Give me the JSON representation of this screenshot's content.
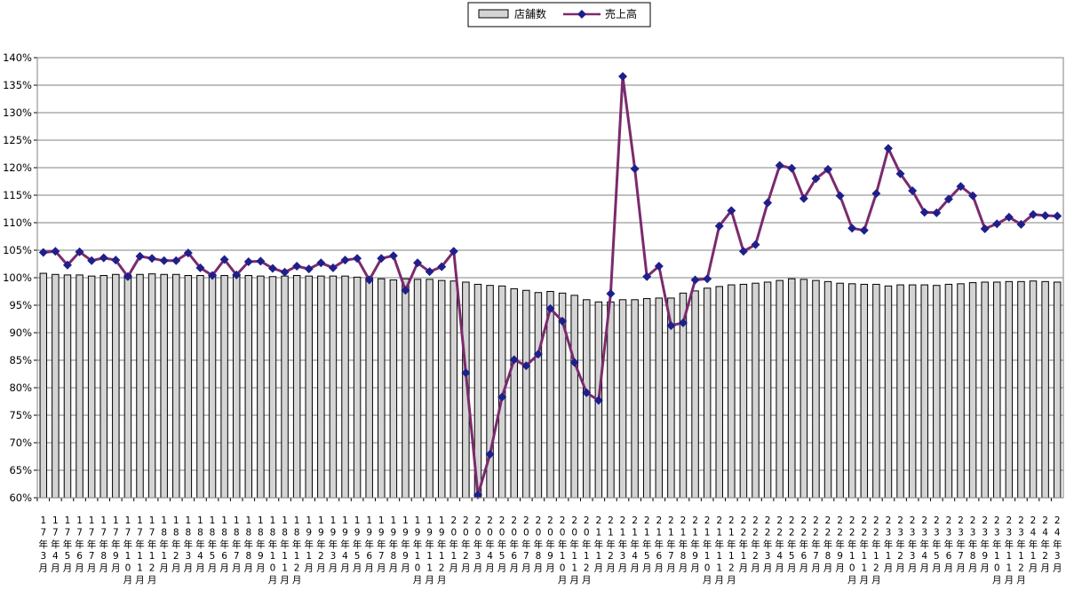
{
  "chart_data": {
    "type": "bar",
    "legend_position": "top-center",
    "grid": true,
    "ylim": [
      0.6,
      1.4
    ],
    "y_tick_labels": [
      "60%",
      "65%",
      "70%",
      "75%",
      "80%",
      "85%",
      "90%",
      "95%",
      "100%",
      "105%",
      "110%",
      "115%",
      "120%",
      "125%",
      "130%",
      "135%",
      "140%"
    ],
    "categories": [
      "17年3月",
      "17年4月",
      "17年5月",
      "17年6月",
      "17年7月",
      "17年8月",
      "17年9月",
      "17年10月",
      "17年11月",
      "17年12月",
      "18年1月",
      "18年2月",
      "18年3月",
      "18年4月",
      "18年5月",
      "18年6月",
      "18年7月",
      "18年8月",
      "18年9月",
      "18年10月",
      "18年11月",
      "18年12月",
      "19年1月",
      "19年2月",
      "19年3月",
      "19年4月",
      "19年5月",
      "19年6月",
      "19年7月",
      "19年8月",
      "19年9月",
      "19年10月",
      "19年11月",
      "19年12月",
      "20年1月",
      "20年2月",
      "20年3月",
      "20年4月",
      "20年5月",
      "20年6月",
      "20年7月",
      "20年8月",
      "20年9月",
      "20年10月",
      "20年11月",
      "20年12月",
      "21年1月",
      "21年2月",
      "21年3月",
      "21年4月",
      "21年5月",
      "21年6月",
      "21年7月",
      "21年8月",
      "21年9月",
      "21年10月",
      "21年11月",
      "21年12月",
      "22年1月",
      "22年2月",
      "22年3月",
      "22年4月",
      "22年5月",
      "22年6月",
      "22年7月",
      "22年8月",
      "22年9月",
      "22年10月",
      "22年11月",
      "22年12月",
      "23年1月",
      "23年2月",
      "23年3月",
      "23年4月",
      "23年5月",
      "23年6月",
      "23年7月",
      "23年8月",
      "23年9月",
      "23年10月",
      "23年11月",
      "23年12月",
      "24年1月",
      "24年2月",
      "24年3月"
    ],
    "series": [
      {
        "name": "店舗数",
        "type": "bar",
        "color": "#d4d4d4",
        "values": [
          1.008,
          1.006,
          1.005,
          1.005,
          1.003,
          1.004,
          1.006,
          1.005,
          1.006,
          1.007,
          1.006,
          1.006,
          1.004,
          1.004,
          1.006,
          1.004,
          1.006,
          1.004,
          1.003,
          1.002,
          1.003,
          1.004,
          1.003,
          1.003,
          1.003,
          1.003,
          1.001,
          1.0,
          0.998,
          0.996,
          0.998,
          0.997,
          0.997,
          0.995,
          0.994,
          0.992,
          0.988,
          0.986,
          0.985,
          0.98,
          0.977,
          0.973,
          0.975,
          0.972,
          0.968,
          0.96,
          0.956,
          0.956,
          0.96,
          0.96,
          0.962,
          0.963,
          0.963,
          0.972,
          0.976,
          0.981,
          0.984,
          0.987,
          0.988,
          0.99,
          0.992,
          0.995,
          0.998,
          0.997,
          0.995,
          0.993,
          0.99,
          0.989,
          0.988,
          0.988,
          0.985,
          0.987,
          0.987,
          0.987,
          0.986,
          0.988,
          0.989,
          0.991,
          0.992,
          0.992,
          0.993,
          0.993,
          0.994,
          0.993,
          0.992
        ]
      },
      {
        "name": "売上高",
        "type": "line",
        "color": "#7b2a6e",
        "marker_color": "#1f1f8c",
        "values": [
          1.046,
          1.048,
          1.023,
          1.047,
          1.031,
          1.036,
          1.032,
          1.002,
          1.039,
          1.035,
          1.031,
          1.031,
          1.045,
          1.018,
          1.004,
          1.033,
          1.005,
          1.029,
          1.03,
          1.017,
          1.01,
          1.021,
          1.016,
          1.027,
          1.018,
          1.032,
          1.035,
          0.996,
          1.035,
          1.04,
          0.977,
          1.027,
          1.011,
          1.02,
          1.048,
          0.827,
          0.605,
          0.679,
          0.783,
          0.851,
          0.84,
          0.861,
          0.944,
          0.921,
          0.846,
          0.791,
          0.777,
          0.971,
          1.366,
          1.198,
          1.002,
          1.021,
          0.913,
          0.918,
          0.996,
          0.998,
          1.094,
          1.122,
          1.048,
          1.06,
          1.136,
          1.204,
          1.199,
          1.144,
          1.18,
          1.197,
          1.149,
          1.09,
          1.086,
          1.153,
          1.235,
          1.189,
          1.158,
          1.119,
          1.118,
          1.143,
          1.166,
          1.149,
          1.089,
          1.098,
          1.11,
          1.097,
          1.115,
          1.113,
          1.112
        ]
      }
    ]
  }
}
